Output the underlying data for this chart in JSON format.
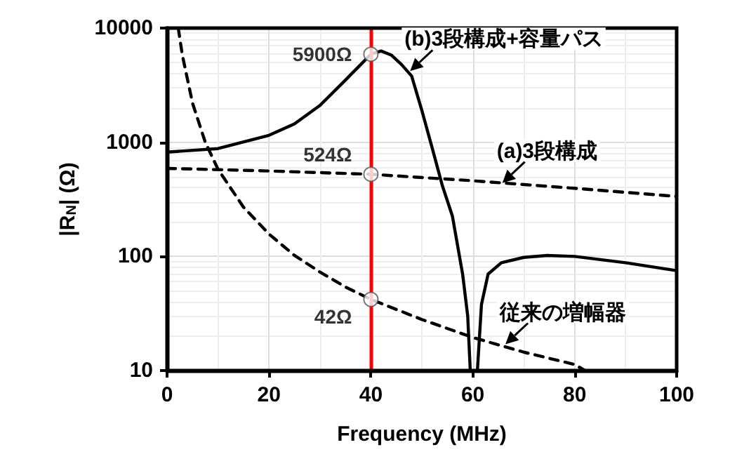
{
  "chart_data": {
    "type": "line",
    "xlabel": "Frequency (MHz)",
    "ylabel": "|R$_{N}$| (Ω)",
    "log": "y",
    "xlim": [
      0,
      100
    ],
    "xticks": [
      0,
      20,
      40,
      60,
      80,
      100
    ],
    "ylim": [
      10,
      10000
    ],
    "yticks": [
      10,
      100,
      1000,
      10000
    ],
    "grid": true,
    "series": [
      {
        "color": "#000000",
        "line_style": "solid",
        "marker": "none",
        "x": [
          0,
          10,
          20,
          25,
          30,
          35,
          40,
          42,
          44,
          46,
          48,
          50,
          52,
          54,
          56,
          58,
          59,
          59.5,
          60.2,
          60.9,
          61.7,
          63,
          65.6,
          70,
          74.6,
          80,
          90,
          100
        ],
        "values": [
          820,
          880,
          1150,
          1450,
          2100,
          3500,
          5900,
          6300,
          5800,
          4800,
          3800,
          1900,
          900,
          420,
          225,
          70,
          30,
          10,
          null,
          10,
          38,
          70,
          88,
          98,
          102,
          100,
          88,
          75
        ]
      },
      {
        "color": "#000000",
        "line_style": "dashed",
        "marker": "none",
        "x": [
          0,
          20,
          40,
          60,
          80,
          100
        ],
        "values": [
          590,
          560,
          524,
          460,
          395,
          335
        ]
      },
      {
        "color": "#000000",
        "line_style": "dashed",
        "marker": "none",
        "x": [
          2.2,
          3,
          5,
          7.5,
          10,
          15,
          20,
          25,
          30,
          35,
          40,
          50,
          60,
          70,
          80,
          82
        ],
        "values": [
          10000,
          5800,
          2200,
          1000,
          580,
          270,
          157,
          102,
          73,
          54,
          42,
          28,
          19.5,
          14.5,
          11.3,
          10
        ]
      },
      {
        "type": "scatter",
        "color": "#ffffff",
        "marker": "circle",
        "x": [
          40,
          40,
          40
        ],
        "values": [
          5900,
          524,
          42
        ],
        "value_labels": [
          "5900Ω",
          "524Ω",
          "42Ω"
        ]
      }
    ],
    "ref_lines": [
      {
        "axis": "x",
        "value": 40,
        "color": "#ff0000",
        "line_style": "solid"
      }
    ],
    "annotations": [
      {
        "text": "(b)3段構成+容量パス",
        "x": 47.7,
        "y": 4200
      },
      {
        "text": "(a)3段構成",
        "x": 65.8,
        "y": 440
      },
      {
        "text": "従来の増幅器",
        "x": 66.4,
        "y": 17
      }
    ]
  }
}
